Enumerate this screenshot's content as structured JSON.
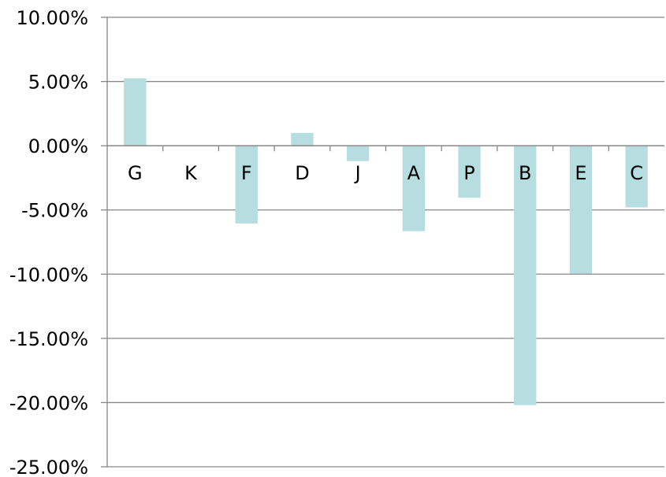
{
  "chart_data": {
    "type": "bar",
    "title": "",
    "xlabel": "",
    "ylabel": "",
    "categories": [
      "G",
      "K",
      "F",
      "D",
      "J",
      "A",
      "P",
      "B",
      "E",
      "C"
    ],
    "values": [
      5.25,
      0.0,
      -6.05,
      1.0,
      -1.2,
      -6.65,
      -4.05,
      -20.2,
      -9.95,
      -4.8
    ],
    "value_unit": "%",
    "ylim": [
      -25,
      10
    ],
    "yticks": [
      10,
      5,
      0,
      -5,
      -10,
      -15,
      -20,
      -25
    ],
    "ytick_labels": [
      "10.00%",
      "5.00%",
      "0.00%",
      "-5.00%",
      "-10.00%",
      "-15.00%",
      "-20.00%",
      "-25.00%"
    ],
    "grid": true,
    "legend": "none",
    "colors": {
      "bar": "#b6dde0",
      "grid": "#878787",
      "axis": "#878787",
      "text": "#000000"
    }
  }
}
